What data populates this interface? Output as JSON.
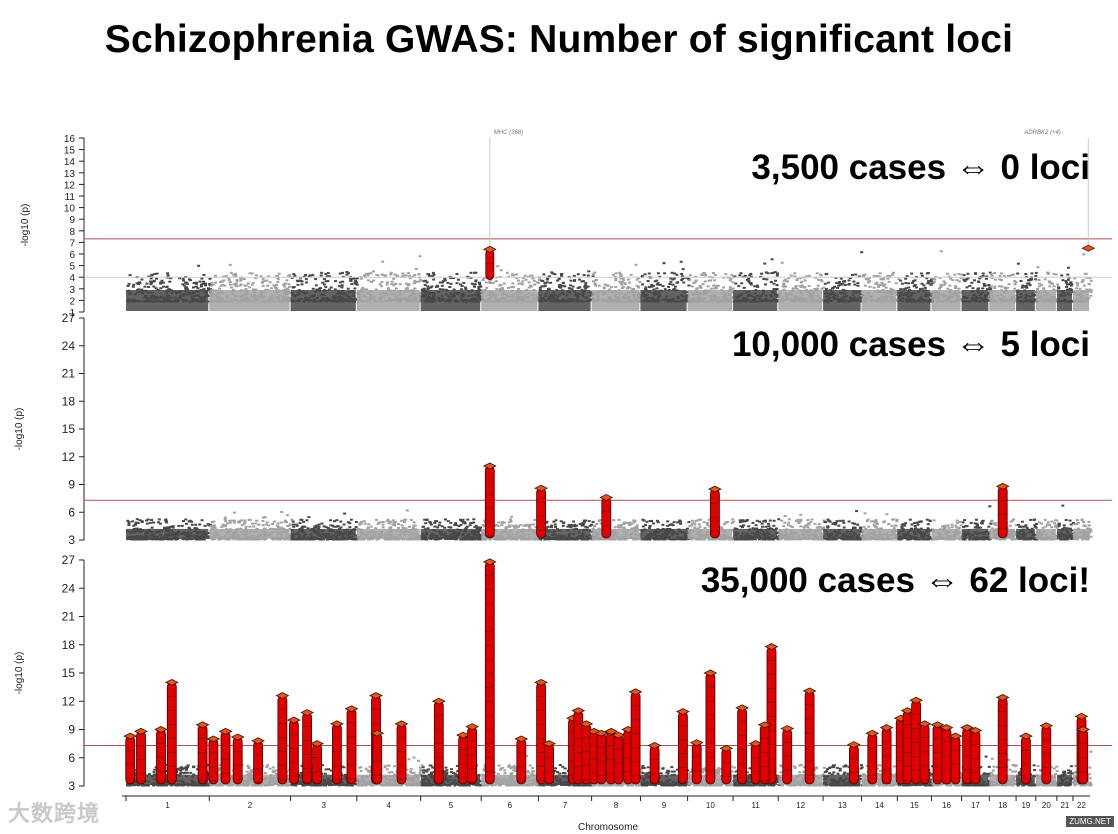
{
  "title": "Schizophrenia GWAS: Number of significant loci",
  "colors": {
    "dark_points": "#484848",
    "light_points": "#a2a2a2",
    "significant": "#e00000",
    "diamond": "#e8541a",
    "threshold_line": "#b05050",
    "axis": "#222222"
  },
  "watermark": "大数跨境",
  "watermark_right": "ZUMG.NET",
  "chart_data": [
    {
      "type": "scatter",
      "subtype": "manhattan",
      "label": "3,500 cases ⇔ 0 loci",
      "ylabel": "-log10 (p)",
      "ylim": [
        1,
        16
      ],
      "yticks": [
        1,
        2,
        3,
        4,
        5,
        6,
        7,
        8,
        9,
        10,
        11,
        12,
        13,
        14,
        15,
        16
      ],
      "threshold": 7.3,
      "suggestive": 4.0,
      "annotations": [
        {
          "text": "MHC (368)",
          "chrom": 6
        },
        {
          "text": "ADRBK2 (+4)",
          "chrom": 22
        }
      ],
      "peaks": [
        {
          "chrom": 6,
          "pos": 0.15,
          "height": 6.4,
          "marker": "diamond"
        },
        {
          "chrom": 22,
          "pos": 0.9,
          "height": 6.5,
          "marker": "diamond"
        }
      ]
    },
    {
      "type": "scatter",
      "subtype": "manhattan",
      "label": "10,000 cases ⇔ 5 loci",
      "ylabel": "-log10 (p)",
      "ylim": [
        3,
        27
      ],
      "yticks": [
        3,
        6,
        9,
        12,
        15,
        18,
        21,
        24,
        27
      ],
      "threshold": 7.3,
      "peaks": [
        {
          "chrom": 6,
          "pos": 0.15,
          "height": 11.0
        },
        {
          "chrom": 7,
          "pos": 0.05,
          "height": 8.6
        },
        {
          "chrom": 8,
          "pos": 0.3,
          "height": 7.6
        },
        {
          "chrom": 10,
          "pos": 0.6,
          "height": 8.5
        },
        {
          "chrom": 18,
          "pos": 0.5,
          "height": 8.8
        }
      ]
    },
    {
      "type": "scatter",
      "subtype": "manhattan",
      "label": "35,000 cases ⇔ 62 loci!",
      "ylabel": "-log10 (p)",
      "ylim": [
        3,
        27
      ],
      "yticks": [
        3,
        6,
        9,
        12,
        15,
        18,
        21,
        24,
        27
      ],
      "threshold": 7.3,
      "xlabel": "Chromosome",
      "xticks": [
        "1",
        "2",
        "3",
        "4",
        "5",
        "6",
        "7",
        "8",
        "9",
        "10",
        "11",
        "12",
        "13",
        "14",
        "15",
        "16",
        "17",
        "18",
        "19",
        "20",
        "21",
        "22"
      ],
      "peaks": [
        {
          "chrom": 1,
          "pos": 0.05,
          "height": 8.3
        },
        {
          "chrom": 1,
          "pos": 0.18,
          "height": 8.8
        },
        {
          "chrom": 1,
          "pos": 0.42,
          "height": 9.0
        },
        {
          "chrom": 1,
          "pos": 0.55,
          "height": 14.0
        },
        {
          "chrom": 1,
          "pos": 0.92,
          "height": 9.5
        },
        {
          "chrom": 2,
          "pos": 0.05,
          "height": 8.0
        },
        {
          "chrom": 2,
          "pos": 0.2,
          "height": 8.8
        },
        {
          "chrom": 2,
          "pos": 0.35,
          "height": 8.2
        },
        {
          "chrom": 2,
          "pos": 0.6,
          "height": 7.8
        },
        {
          "chrom": 2,
          "pos": 0.9,
          "height": 12.6
        },
        {
          "chrom": 3,
          "pos": 0.05,
          "height": 10.0
        },
        {
          "chrom": 3,
          "pos": 0.25,
          "height": 10.8
        },
        {
          "chrom": 3,
          "pos": 0.4,
          "height": 7.5
        },
        {
          "chrom": 3,
          "pos": 0.7,
          "height": 9.6
        },
        {
          "chrom": 3,
          "pos": 0.92,
          "height": 11.2
        },
        {
          "chrom": 4,
          "pos": 0.3,
          "height": 12.6
        },
        {
          "chrom": 4,
          "pos": 0.32,
          "height": 8.6
        },
        {
          "chrom": 4,
          "pos": 0.7,
          "height": 9.6
        },
        {
          "chrom": 5,
          "pos": 0.3,
          "height": 12.0
        },
        {
          "chrom": 5,
          "pos": 0.7,
          "height": 8.4
        },
        {
          "chrom": 5,
          "pos": 0.85,
          "height": 9.3
        },
        {
          "chrom": 6,
          "pos": 0.15,
          "height": 26.8
        },
        {
          "chrom": 6,
          "pos": 0.7,
          "height": 8.0
        },
        {
          "chrom": 7,
          "pos": 0.05,
          "height": 14.0
        },
        {
          "chrom": 7,
          "pos": 0.2,
          "height": 7.5
        },
        {
          "chrom": 7,
          "pos": 0.65,
          "height": 10.2
        },
        {
          "chrom": 7,
          "pos": 0.75,
          "height": 11.0
        },
        {
          "chrom": 7,
          "pos": 0.9,
          "height": 9.6
        },
        {
          "chrom": 8,
          "pos": 0.05,
          "height": 8.8
        },
        {
          "chrom": 8,
          "pos": 0.2,
          "height": 8.6
        },
        {
          "chrom": 8,
          "pos": 0.4,
          "height": 8.8
        },
        {
          "chrom": 8,
          "pos": 0.55,
          "height": 8.4
        },
        {
          "chrom": 8,
          "pos": 0.75,
          "height": 9.0
        },
        {
          "chrom": 8,
          "pos": 0.9,
          "height": 13.0
        },
        {
          "chrom": 9,
          "pos": 0.3,
          "height": 7.3
        },
        {
          "chrom": 9,
          "pos": 0.9,
          "height": 10.9
        },
        {
          "chrom": 10,
          "pos": 0.2,
          "height": 7.6
        },
        {
          "chrom": 10,
          "pos": 0.5,
          "height": 15.0
        },
        {
          "chrom": 10,
          "pos": 0.85,
          "height": 7.0
        },
        {
          "chrom": 11,
          "pos": 0.2,
          "height": 11.3
        },
        {
          "chrom": 11,
          "pos": 0.5,
          "height": 7.5
        },
        {
          "chrom": 11,
          "pos": 0.85,
          "height": 17.8
        },
        {
          "chrom": 11,
          "pos": 0.7,
          "height": 9.5
        },
        {
          "chrom": 12,
          "pos": 0.2,
          "height": 9.1
        },
        {
          "chrom": 12,
          "pos": 0.7,
          "height": 13.1
        },
        {
          "chrom": 13,
          "pos": 0.8,
          "height": 7.4
        },
        {
          "chrom": 14,
          "pos": 0.3,
          "height": 8.6
        },
        {
          "chrom": 14,
          "pos": 0.7,
          "height": 9.2
        },
        {
          "chrom": 15,
          "pos": 0.1,
          "height": 10.2
        },
        {
          "chrom": 15,
          "pos": 0.3,
          "height": 11.0
        },
        {
          "chrom": 15,
          "pos": 0.55,
          "height": 12.1
        },
        {
          "chrom": 15,
          "pos": 0.8,
          "height": 9.6
        },
        {
          "chrom": 16,
          "pos": 0.2,
          "height": 9.5
        },
        {
          "chrom": 16,
          "pos": 0.5,
          "height": 9.2
        },
        {
          "chrom": 16,
          "pos": 0.8,
          "height": 8.3
        },
        {
          "chrom": 17,
          "pos": 0.2,
          "height": 9.2
        },
        {
          "chrom": 17,
          "pos": 0.5,
          "height": 8.9
        },
        {
          "chrom": 18,
          "pos": 0.5,
          "height": 12.4
        },
        {
          "chrom": 19,
          "pos": 0.5,
          "height": 8.3
        },
        {
          "chrom": 20,
          "pos": 0.5,
          "height": 9.4
        },
        {
          "chrom": 22,
          "pos": 0.5,
          "height": 10.4
        },
        {
          "chrom": 22,
          "pos": 0.6,
          "height": 9.0
        }
      ]
    }
  ]
}
